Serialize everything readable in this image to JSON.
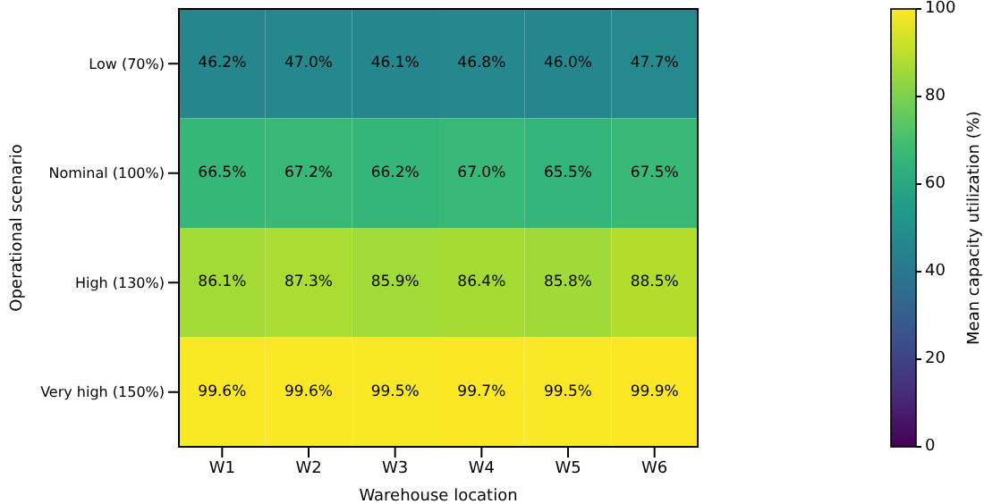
{
  "chart_data": {
    "type": "heatmap",
    "xlabel": "Warehouse location",
    "ylabel": "Operational scenario",
    "clabel": "Mean capacity utilization (%)",
    "categories": [
      "W1",
      "W2",
      "W3",
      "W4",
      "W5",
      "W6"
    ],
    "y_categories": [
      "Low (70%)",
      "Nominal (100%)",
      "High (130%)",
      "Very high (150%)"
    ],
    "cells": [
      [
        46.2,
        47.0,
        46.1,
        46.8,
        46.0,
        47.7
      ],
      [
        66.5,
        67.2,
        66.2,
        67.0,
        65.5,
        67.5
      ],
      [
        86.1,
        87.3,
        85.9,
        86.4,
        85.8,
        88.5
      ],
      [
        99.6,
        99.6,
        99.5,
        99.7,
        99.5,
        99.9
      ]
    ],
    "cell_labels": [
      [
        "46.2%",
        "47.0%",
        "46.1%",
        "46.8%",
        "46.0%",
        "47.7%"
      ],
      [
        "66.5%",
        "67.2%",
        "66.2%",
        "67.0%",
        "65.5%",
        "67.5%"
      ],
      [
        "86.1%",
        "87.3%",
        "85.9%",
        "86.4%",
        "85.8%",
        "88.5%"
      ],
      [
        "99.6%",
        "99.6%",
        "99.5%",
        "99.7%",
        "99.5%",
        "99.9%"
      ]
    ],
    "clim": [
      0,
      100
    ],
    "cticks": [
      0,
      20,
      40,
      60,
      80,
      100
    ]
  }
}
